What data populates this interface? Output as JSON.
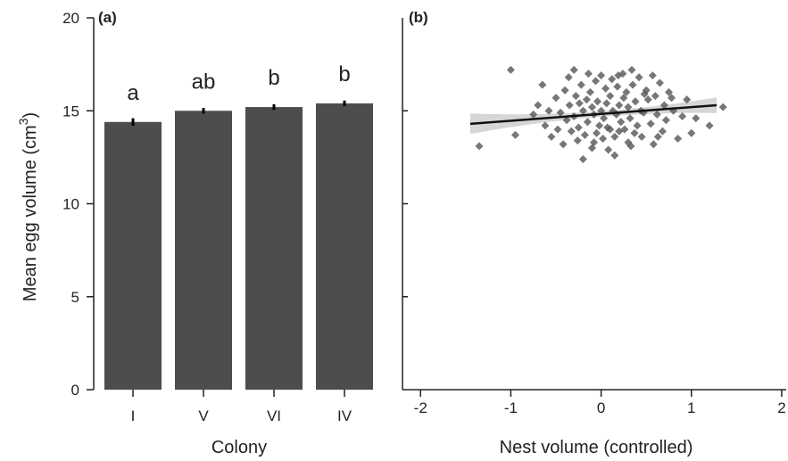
{
  "chart_data": [
    {
      "panel": "(a)",
      "type": "bar",
      "categories": [
        "I",
        "V",
        "VI",
        "IV"
      ],
      "values": [
        14.4,
        15.0,
        15.2,
        15.4
      ],
      "errors": [
        0.2,
        0.15,
        0.15,
        0.15
      ],
      "annotations": [
        "a",
        "ab",
        "b",
        "b"
      ],
      "xlabel": "Colony",
      "ylabel": "Mean egg volume (cm",
      "ylabel_sup": "3",
      "ylabel_close": ")",
      "ylim": [
        0,
        20
      ],
      "yticks": [
        "0",
        "5",
        "10",
        "15",
        "20"
      ],
      "bar_color": "#4d4d4d",
      "grid": false
    },
    {
      "panel": "(b)",
      "type": "scatter",
      "xlabel": "Nest volume (controlled)",
      "xlim": [
        -2.2,
        2.05
      ],
      "ylim": [
        0,
        20
      ],
      "xticks": [
        "-2",
        "-1",
        "0",
        "1",
        "2"
      ],
      "x_tick_values": [
        -2,
        -1,
        0,
        1,
        2
      ],
      "points": [
        [
          -1.35,
          13.1
        ],
        [
          -1.0,
          17.2
        ],
        [
          -0.95,
          13.7
        ],
        [
          -0.75,
          14.8
        ],
        [
          -0.7,
          15.3
        ],
        [
          -0.62,
          14.2
        ],
        [
          -0.55,
          13.6
        ],
        [
          -0.5,
          15.7
        ],
        [
          -0.45,
          14.9
        ],
        [
          -0.42,
          13.2
        ],
        [
          -0.4,
          16.1
        ],
        [
          -0.38,
          14.5
        ],
        [
          -0.35,
          15.3
        ],
        [
          -0.33,
          13.9
        ],
        [
          -0.3,
          17.2
        ],
        [
          -0.3,
          14.7
        ],
        [
          -0.28,
          15.8
        ],
        [
          -0.26,
          13.4
        ],
        [
          -0.25,
          14.1
        ],
        [
          -0.22,
          16.4
        ],
        [
          -0.2,
          15.0
        ],
        [
          -0.2,
          12.4
        ],
        [
          -0.18,
          13.7
        ],
        [
          -0.16,
          15.6
        ],
        [
          -0.15,
          14.4
        ],
        [
          -0.12,
          16.0
        ],
        [
          -0.1,
          13.0
        ],
        [
          -0.1,
          15.2
        ],
        [
          -0.08,
          14.8
        ],
        [
          -0.06,
          16.6
        ],
        [
          -0.05,
          13.8
        ],
        [
          -0.04,
          15.5
        ],
        [
          -0.02,
          14.2
        ],
        [
          0.0,
          16.9
        ],
        [
          0.0,
          15.0
        ],
        [
          0.02,
          13.5
        ],
        [
          0.03,
          14.6
        ],
        [
          0.05,
          16.2
        ],
        [
          0.06,
          15.4
        ],
        [
          0.08,
          12.9
        ],
        [
          0.1,
          14.0
        ],
        [
          0.1,
          15.8
        ],
        [
          0.12,
          16.7
        ],
        [
          0.13,
          15.0
        ],
        [
          0.15,
          13.6
        ],
        [
          0.15,
          12.6
        ],
        [
          0.17,
          14.8
        ],
        [
          0.18,
          16.3
        ],
        [
          0.2,
          15.3
        ],
        [
          0.2,
          13.9
        ],
        [
          0.22,
          14.4
        ],
        [
          0.24,
          17.0
        ],
        [
          0.25,
          15.7
        ],
        [
          0.26,
          14.0
        ],
        [
          0.28,
          16.0
        ],
        [
          0.3,
          13.3
        ],
        [
          0.3,
          15.2
        ],
        [
          0.32,
          14.6
        ],
        [
          0.34,
          17.2
        ],
        [
          0.35,
          16.4
        ],
        [
          0.37,
          13.8
        ],
        [
          0.38,
          15.5
        ],
        [
          0.4,
          14.2
        ],
        [
          0.42,
          16.8
        ],
        [
          0.44,
          15.0
        ],
        [
          0.45,
          13.6
        ],
        [
          0.47,
          14.9
        ],
        [
          0.5,
          16.1
        ],
        [
          0.52,
          15.6
        ],
        [
          0.55,
          14.3
        ],
        [
          0.58,
          13.2
        ],
        [
          0.6,
          15.8
        ],
        [
          0.62,
          14.8
        ],
        [
          0.65,
          16.5
        ],
        [
          0.68,
          13.9
        ],
        [
          0.7,
          15.3
        ],
        [
          0.72,
          14.5
        ],
        [
          0.75,
          16.0
        ],
        [
          0.8,
          15.0
        ],
        [
          0.85,
          13.5
        ],
        [
          0.9,
          14.7
        ],
        [
          0.95,
          15.6
        ],
        [
          1.0,
          13.8
        ],
        [
          1.05,
          14.6
        ],
        [
          1.2,
          14.2
        ],
        [
          1.35,
          15.2
        ],
        [
          -0.48,
          14.0
        ],
        [
          -0.36,
          16.8
        ],
        [
          -0.24,
          15.4
        ],
        [
          -0.14,
          17.0
        ],
        [
          -0.08,
          13.3
        ],
        [
          0.07,
          14.1
        ],
        [
          0.19,
          16.9
        ],
        [
          0.33,
          13.1
        ],
        [
          0.48,
          15.9
        ],
        [
          0.57,
          16.9
        ],
        [
          0.63,
          13.6
        ],
        [
          0.78,
          15.7
        ],
        [
          -0.58,
          15.0
        ],
        [
          -0.65,
          16.4
        ]
      ],
      "fit_line": {
        "x": [
          -1.45,
          1.28
        ],
        "y": [
          14.3,
          15.3
        ]
      },
      "point_color": "#555555",
      "line_color": "#111111",
      "ci_color": "#cfcfcf",
      "grid": false
    }
  ]
}
